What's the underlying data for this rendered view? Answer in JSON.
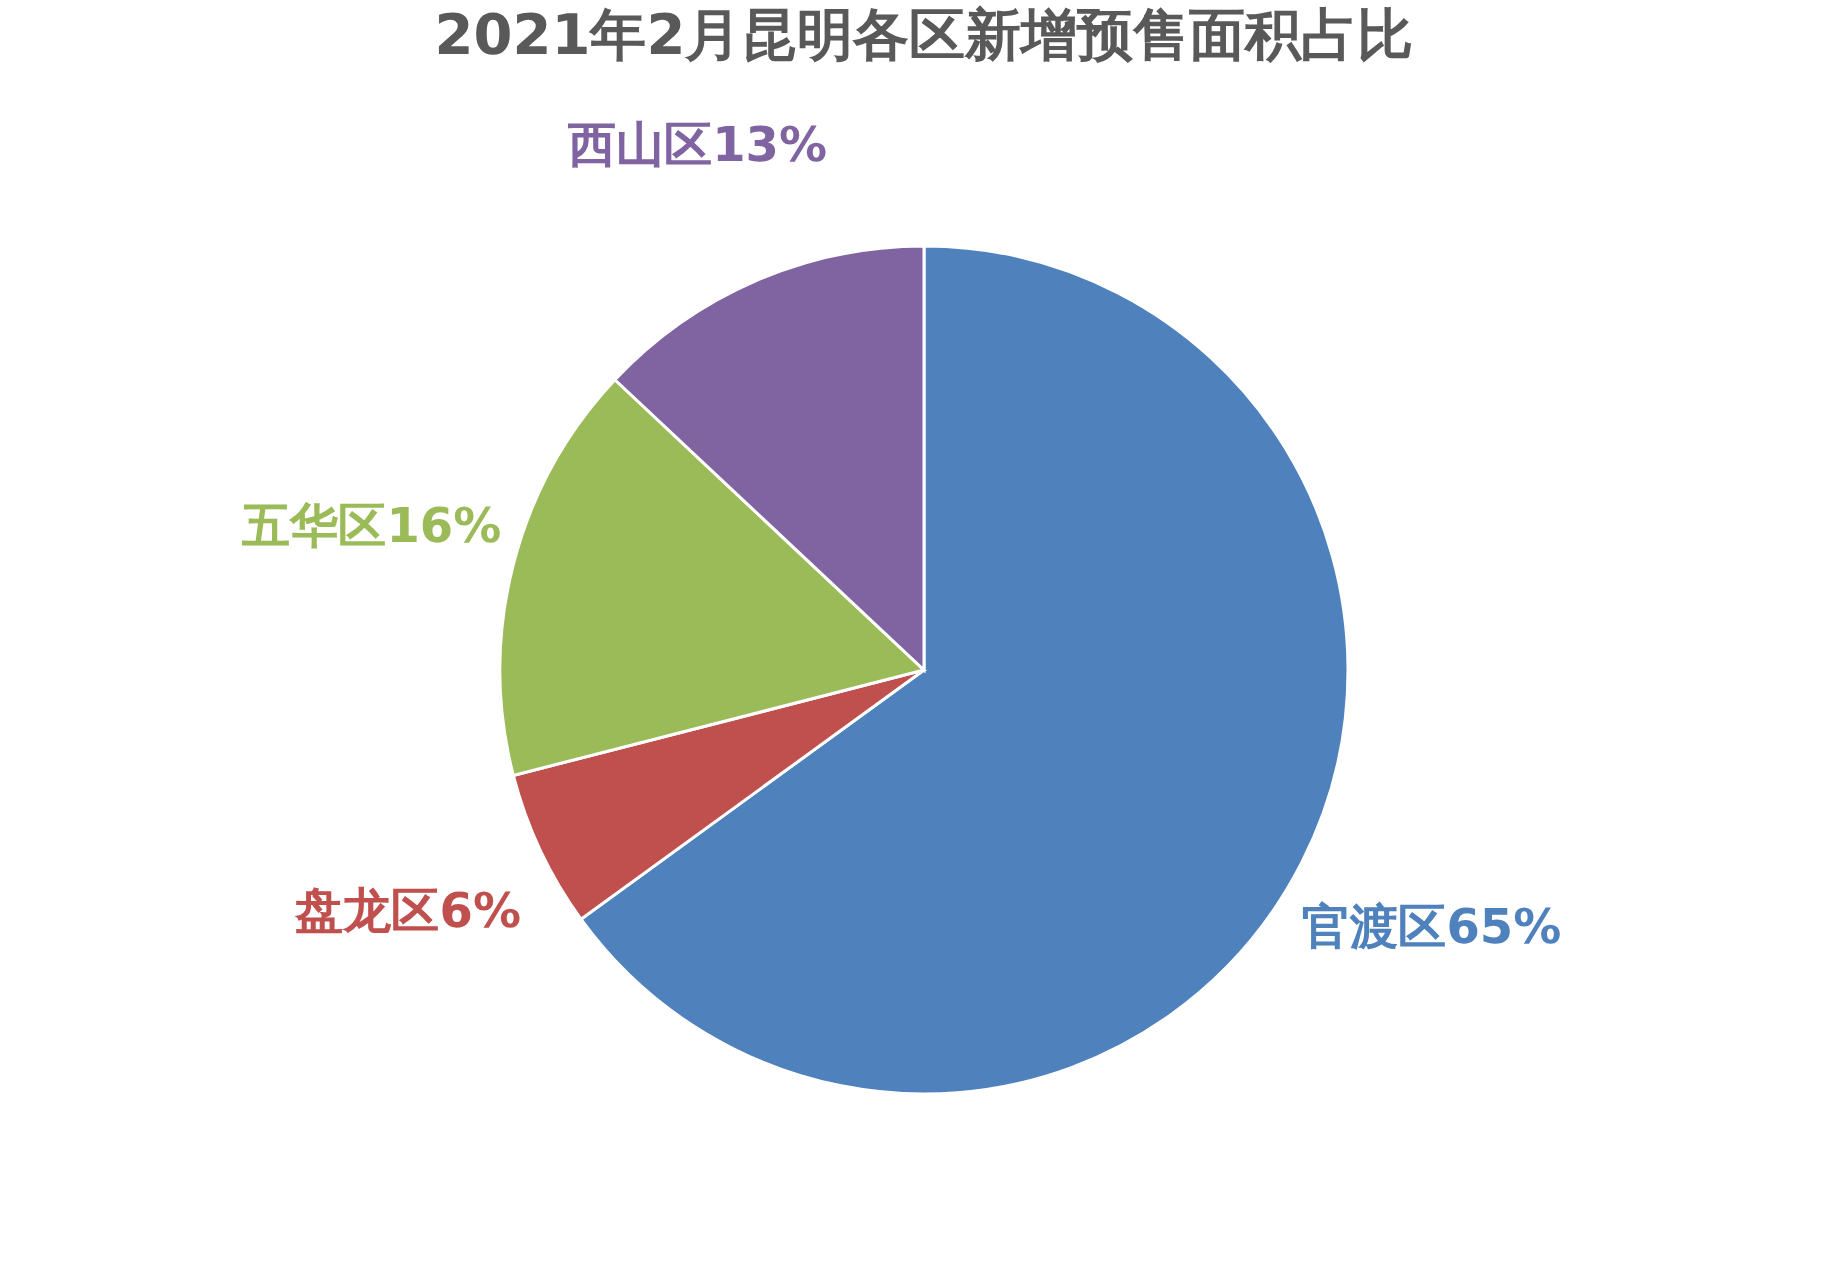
{
  "chart_data": {
    "type": "pie",
    "title": "2021年2月昆明各区新增预售面积占比",
    "categories": [
      "官渡区",
      "盘龙区",
      "五华区",
      "西山区"
    ],
    "values": [
      65,
      6,
      16,
      13
    ],
    "value_labels": [
      "65%",
      "6%",
      "16%",
      "13%"
    ],
    "colors": [
      "#4f81bd",
      "#c0504d",
      "#9bbb59",
      "#8064a2"
    ],
    "legend": false
  }
}
